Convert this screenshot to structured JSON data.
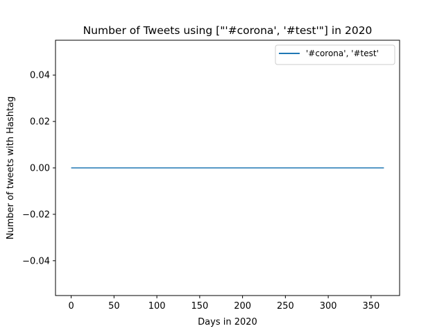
{
  "chart_data": {
    "type": "line",
    "title": "Number of Tweets using [\"'#corona', '#test'\"] in 2020",
    "xlabel": "Days in  2020",
    "ylabel": "Number of tweets with Hashtag",
    "xlim": [
      -18.3,
      383.3
    ],
    "ylim": [
      -0.055,
      0.055
    ],
    "xticks": [
      0,
      50,
      100,
      150,
      200,
      250,
      300,
      350
    ],
    "yticks": [
      -0.04,
      -0.02,
      0.0,
      0.02,
      0.04
    ],
    "ytick_labels": [
      "−0.04",
      "−0.02",
      "0.00",
      "0.02",
      "0.04"
    ],
    "grid": false,
    "legend": {
      "placement": "top-right"
    },
    "series": [
      {
        "name": "'#corona', '#test'",
        "color": "#1f77b4",
        "x": [
          0,
          365
        ],
        "values": [
          0,
          0
        ]
      }
    ]
  }
}
